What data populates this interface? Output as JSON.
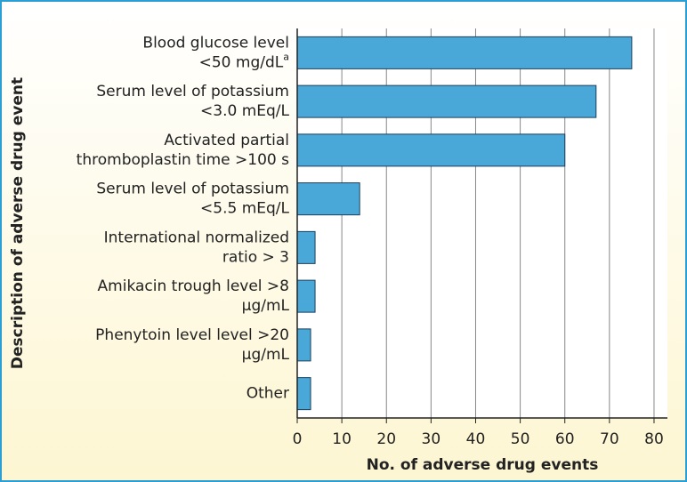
{
  "chart_data": {
    "type": "bar",
    "orientation": "horizontal",
    "categories": [
      [
        "Blood glucose level",
        "<50 mg/dL"
      ],
      [
        "Serum level of potassium",
        "<3.0 mEq/L"
      ],
      [
        "Activated partial",
        "thromboplastin time >100 s"
      ],
      [
        "Serum level of potassium",
        "<5.5 mEq/L"
      ],
      [
        "International normalized",
        "ratio > 3"
      ],
      [
        "Amikacin trough level >8",
        "µg/mL"
      ],
      [
        "Phenytoin level level >20",
        "µg/mL"
      ],
      [
        "Other"
      ]
    ],
    "category_notes": [
      "a",
      null,
      null,
      null,
      null,
      null,
      null,
      null
    ],
    "values": [
      75,
      67,
      60,
      14,
      4,
      4,
      3,
      3
    ],
    "color": "#4aa8d8",
    "xlabel": "No. of adverse drug events",
    "ylabel": "Description of adverse drug event",
    "xlim": [
      0,
      83
    ],
    "xticks": [
      0,
      10,
      20,
      30,
      40,
      50,
      60,
      70,
      80
    ],
    "grid": true
  }
}
